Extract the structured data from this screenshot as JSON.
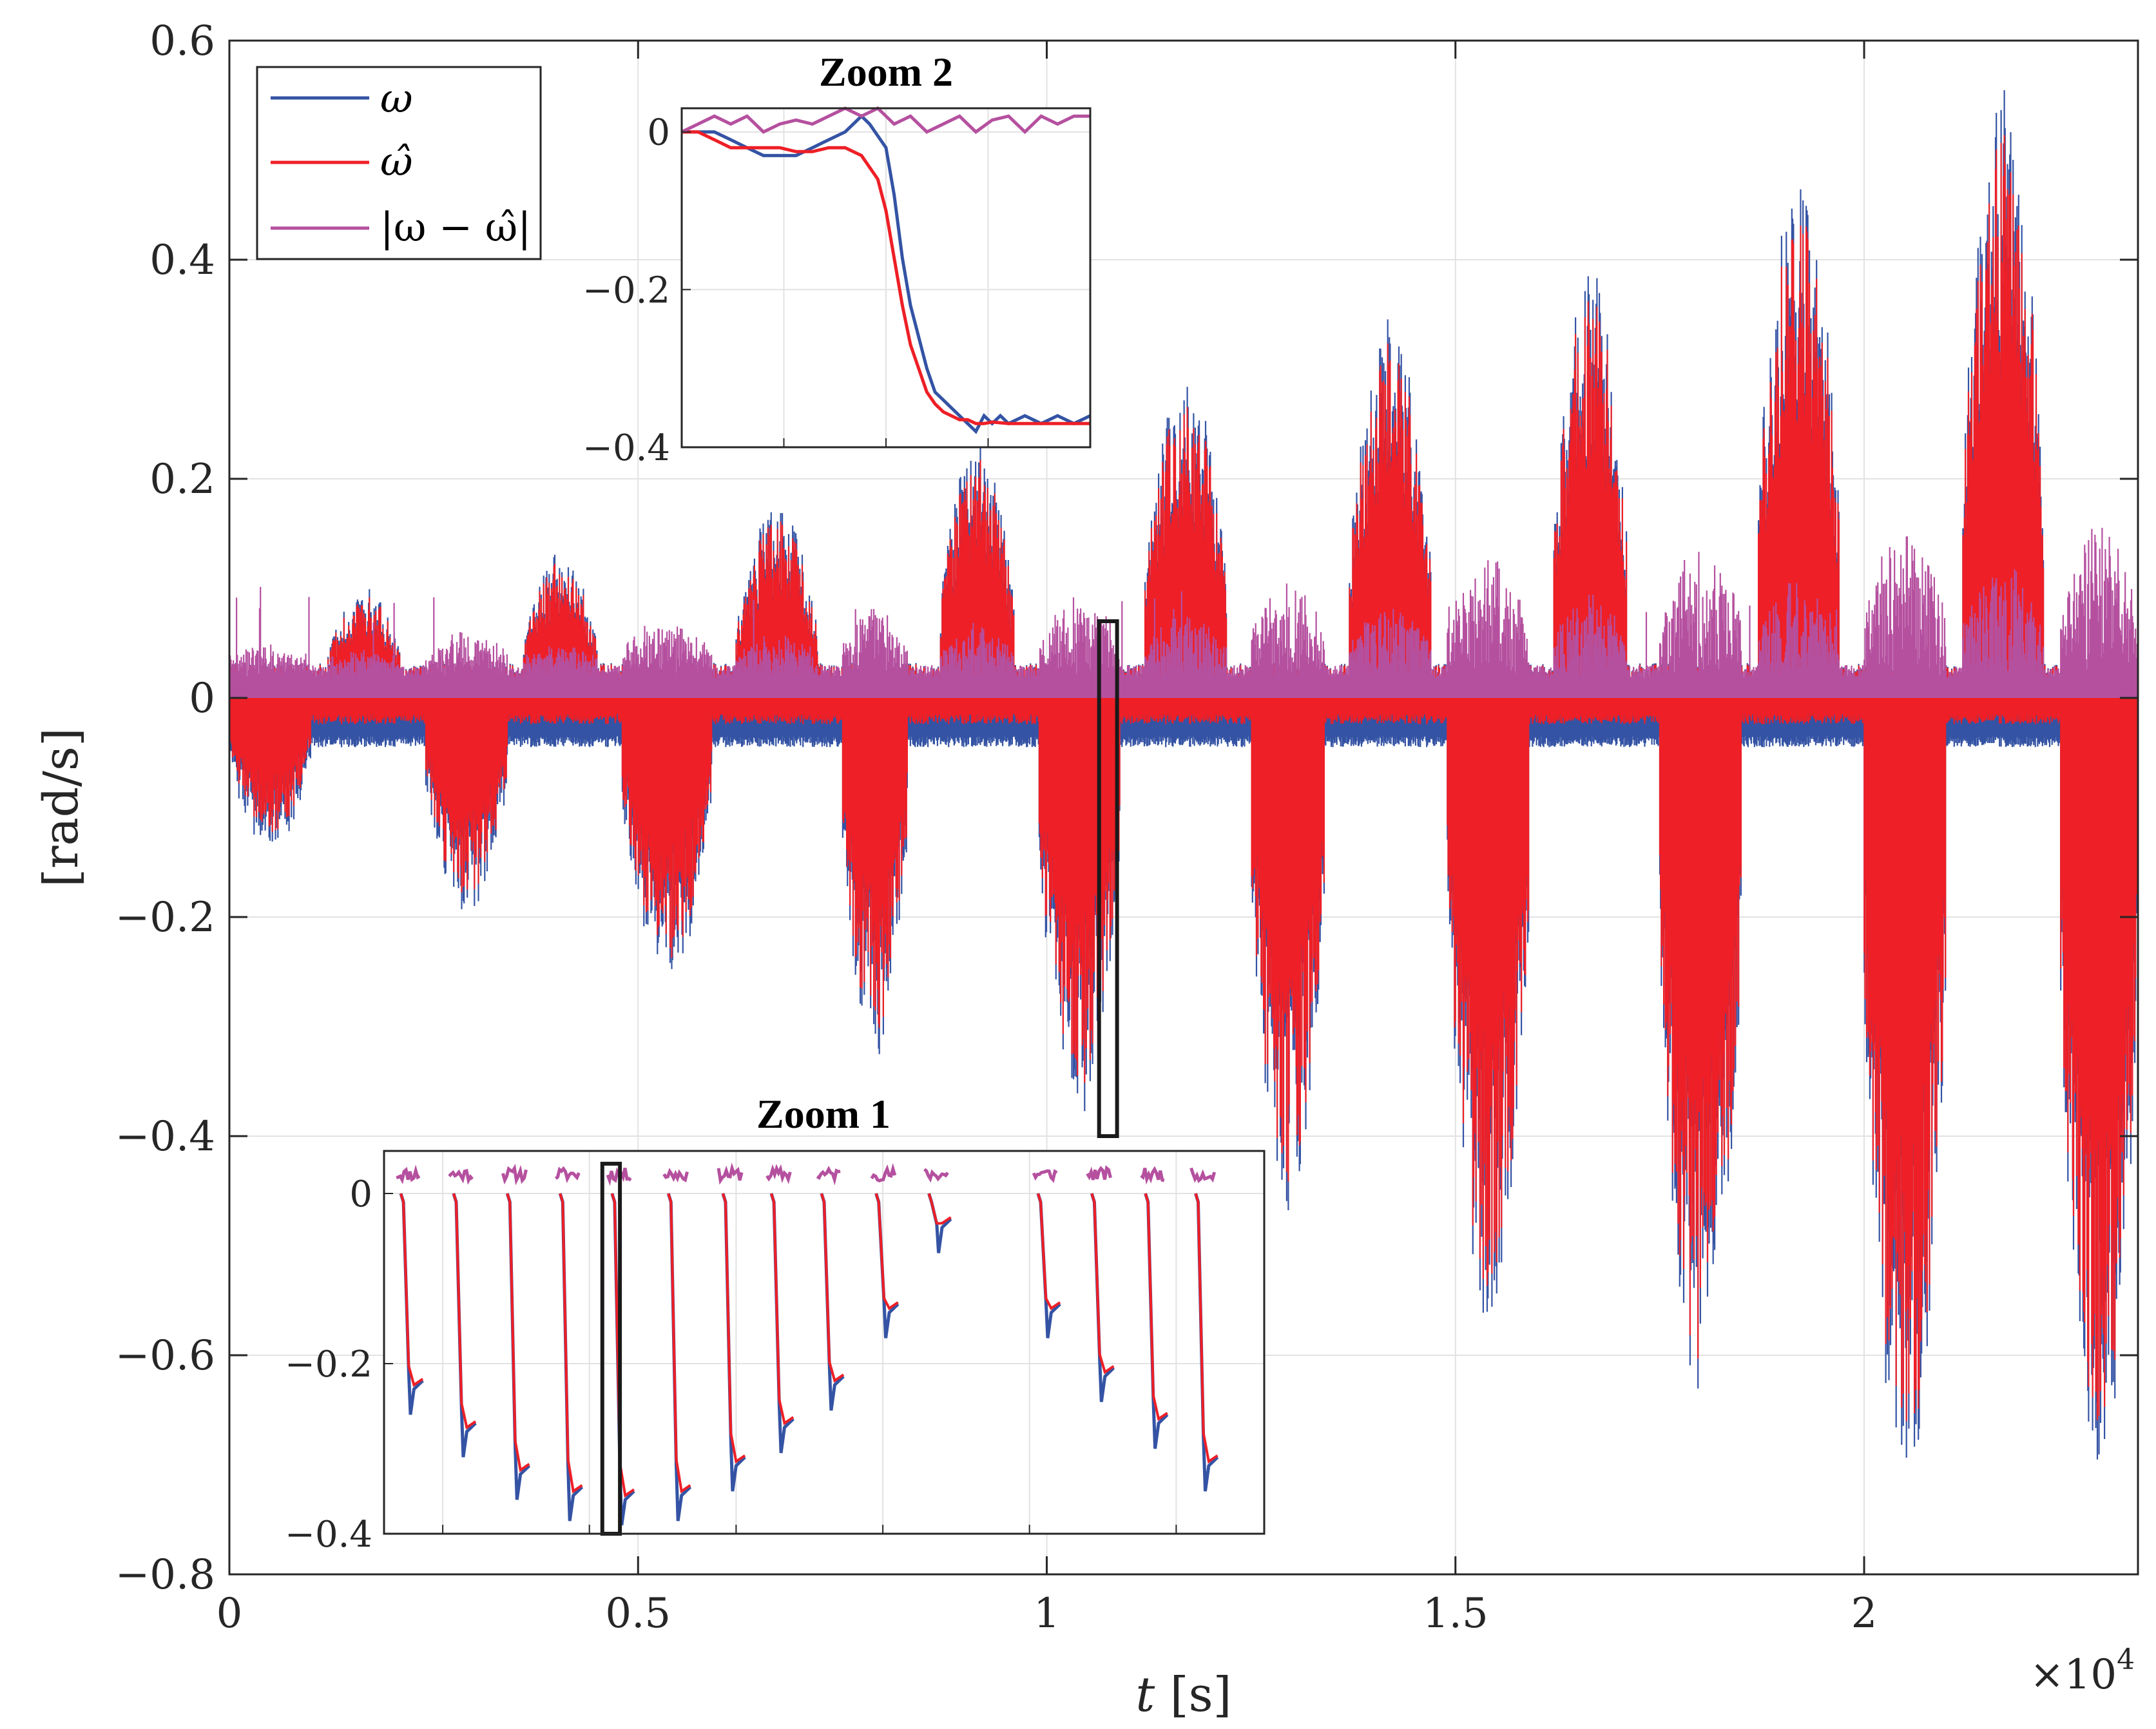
{
  "chart_data": [
    {
      "id": "main",
      "type": "line",
      "title": "",
      "xlabel": "t [s]",
      "ylabel": "[rad/s]",
      "x_multiplier": "×10^4",
      "x_multiplier_base": "×10",
      "x_multiplier_exp": "4",
      "xlim": [
        0,
        2.335
      ],
      "ylim": [
        -0.8,
        0.6
      ],
      "xticks": [
        0,
        0.5,
        1,
        1.5,
        2
      ],
      "xtick_labels": [
        "0",
        "0.5",
        "1",
        "1.5",
        "2"
      ],
      "yticks": [
        0.6,
        0.4,
        0.2,
        0,
        -0.2,
        -0.4,
        -0.6,
        -0.8
      ],
      "ytick_labels": [
        "0.6",
        "0.4",
        "0.2",
        "0",
        "−0.2",
        "−0.4",
        "−0.6",
        "−0.8"
      ],
      "grid": true,
      "legend_position": "top-left",
      "series": [
        {
          "name": "ω",
          "color": "#3453a4"
        },
        {
          "name": "ω̂",
          "color": "#ee1f26"
        },
        {
          "name": "|ω − ω̂|",
          "color": "#b5509f"
        }
      ],
      "envelope": {
        "burst_start": [
          0.0,
          0.12,
          0.24,
          0.36,
          0.48,
          0.62,
          0.75,
          0.87,
          0.99,
          1.12,
          1.25,
          1.37,
          1.49,
          1.62,
          1.75,
          1.87,
          2.0,
          2.12,
          2.24
        ],
        "burst_end": [
          0.1,
          0.21,
          0.34,
          0.45,
          0.59,
          0.72,
          0.83,
          0.96,
          1.09,
          1.22,
          1.34,
          1.47,
          1.59,
          1.71,
          1.85,
          1.97,
          2.1,
          2.22,
          2.335
        ],
        "burst_sign": [
          -1,
          1,
          -1,
          1,
          -1,
          1,
          -1,
          1,
          -1,
          1,
          -1,
          1,
          -1,
          1,
          -1,
          1,
          -1,
          1,
          -1
        ],
        "burst_peak": [
          -0.13,
          0.1,
          -0.19,
          0.13,
          -0.25,
          0.17,
          -0.32,
          0.23,
          -0.37,
          0.29,
          -0.46,
          0.34,
          -0.56,
          0.39,
          -0.64,
          0.47,
          -0.73,
          0.54,
          -0.73
        ],
        "error_floor": 0.03,
        "error_spike": 0.085
      },
      "zoom_boxes": [
        {
          "label": "Zoom 2 region",
          "x": [
            1.064,
            1.086
          ],
          "y": [
            -0.4,
            0.07
          ]
        }
      ]
    },
    {
      "id": "zoom1",
      "type": "line",
      "title": "Zoom 1",
      "xlim": [
        0,
        1
      ],
      "ylim": [
        -0.4,
        0.05
      ],
      "yticks": [
        0,
        -0.2,
        -0.4
      ],
      "ytick_labels": [
        "0",
        "−0.2",
        "−0.4"
      ],
      "step_positions": [
        0.022,
        0.082,
        0.143,
        0.203,
        0.262,
        0.326,
        0.388,
        0.443,
        0.5,
        0.562,
        0.622,
        0.746,
        0.807,
        0.868,
        0.925
      ],
      "step_final": [
        -0.23,
        -0.28,
        -0.33,
        -0.355,
        -0.36,
        -0.355,
        -0.32,
        -0.275,
        -0.225,
        -0.14,
        -0.04,
        -0.14,
        -0.215,
        -0.27,
        -0.32
      ],
      "zoom_boxes": [
        {
          "label": "Zoom 2 region",
          "x": [
            0.248,
            0.268
          ],
          "y": [
            -0.4,
            0.035
          ]
        }
      ]
    },
    {
      "id": "zoom2",
      "type": "line",
      "title": "Zoom 2",
      "xlim": [
        0,
        1
      ],
      "ylim": [
        -0.4,
        0.03
      ],
      "yticks": [
        0,
        -0.2,
        -0.4
      ],
      "ytick_labels": [
        "0",
        "−0.2",
        "−0.4"
      ],
      "series": [
        {
          "name": "ω",
          "color": "#3453a4",
          "x": [
            0.0,
            0.04,
            0.08,
            0.12,
            0.16,
            0.2,
            0.24,
            0.28,
            0.32,
            0.36,
            0.4,
            0.44,
            0.46,
            0.5,
            0.52,
            0.54,
            0.56,
            0.58,
            0.6,
            0.62,
            0.64,
            0.66,
            0.68,
            0.7,
            0.72,
            0.74,
            0.76,
            0.78,
            0.8,
            0.84,
            0.88,
            0.92,
            0.96,
            1.0
          ],
          "y": [
            0.0,
            0.0,
            0.0,
            -0.01,
            -0.02,
            -0.03,
            -0.03,
            -0.03,
            -0.02,
            -0.01,
            0.0,
            0.02,
            0.01,
            -0.02,
            -0.08,
            -0.16,
            -0.22,
            -0.26,
            -0.3,
            -0.33,
            -0.34,
            -0.35,
            -0.36,
            -0.37,
            -0.38,
            -0.36,
            -0.37,
            -0.36,
            -0.37,
            -0.36,
            -0.37,
            -0.36,
            -0.37,
            -0.36
          ]
        },
        {
          "name": "ω̂",
          "color": "#ee1f26",
          "x": [
            0.0,
            0.04,
            0.08,
            0.12,
            0.16,
            0.2,
            0.24,
            0.28,
            0.32,
            0.36,
            0.4,
            0.44,
            0.48,
            0.5,
            0.52,
            0.54,
            0.56,
            0.58,
            0.6,
            0.62,
            0.64,
            0.66,
            0.68,
            0.7,
            0.72,
            0.74,
            0.76,
            0.8,
            0.84,
            0.88,
            0.92,
            0.96,
            1.0
          ],
          "y": [
            0.0,
            0.0,
            -0.01,
            -0.02,
            -0.02,
            -0.02,
            -0.02,
            -0.025,
            -0.025,
            -0.02,
            -0.02,
            -0.03,
            -0.06,
            -0.1,
            -0.16,
            -0.22,
            -0.27,
            -0.3,
            -0.33,
            -0.345,
            -0.355,
            -0.36,
            -0.365,
            -0.365,
            -0.37,
            -0.37,
            -0.368,
            -0.37,
            -0.37,
            -0.37,
            -0.37,
            -0.37,
            -0.37
          ]
        },
        {
          "name": "|ω − ω̂|",
          "color": "#b5509f",
          "x": [
            0.0,
            0.04,
            0.08,
            0.12,
            0.16,
            0.2,
            0.24,
            0.28,
            0.32,
            0.36,
            0.4,
            0.44,
            0.48,
            0.52,
            0.56,
            0.6,
            0.64,
            0.68,
            0.72,
            0.76,
            0.8,
            0.84,
            0.88,
            0.92,
            0.96,
            1.0
          ],
          "y": [
            0.0,
            0.01,
            0.02,
            0.01,
            0.02,
            0.0,
            0.01,
            0.015,
            0.01,
            0.02,
            0.03,
            0.02,
            0.03,
            0.01,
            0.02,
            0.0,
            0.01,
            0.02,
            0.0,
            0.015,
            0.02,
            0.0,
            0.02,
            0.01,
            0.02,
            0.02
          ]
        }
      ]
    }
  ]
}
